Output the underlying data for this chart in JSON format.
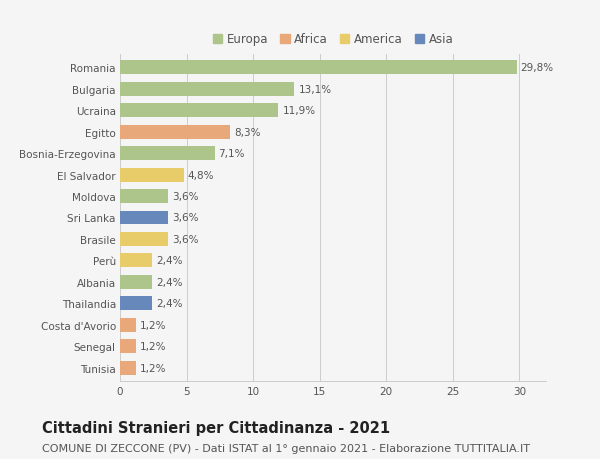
{
  "categories": [
    "Romania",
    "Bulgaria",
    "Ucraina",
    "Egitto",
    "Bosnia-Erzegovina",
    "El Salvador",
    "Moldova",
    "Sri Lanka",
    "Brasile",
    "Perù",
    "Albania",
    "Thailandia",
    "Costa d'Avorio",
    "Senegal",
    "Tunisia"
  ],
  "values": [
    29.8,
    13.1,
    11.9,
    8.3,
    7.1,
    4.8,
    3.6,
    3.6,
    3.6,
    2.4,
    2.4,
    2.4,
    1.2,
    1.2,
    1.2
  ],
  "labels": [
    "29,8%",
    "13,1%",
    "11,9%",
    "8,3%",
    "7,1%",
    "4,8%",
    "3,6%",
    "3,6%",
    "3,6%",
    "2,4%",
    "2,4%",
    "2,4%",
    "1,2%",
    "1,2%",
    "1,2%"
  ],
  "continents": [
    "Europa",
    "Europa",
    "Europa",
    "Africa",
    "Europa",
    "America",
    "Europa",
    "Asia",
    "America",
    "America",
    "Europa",
    "Asia",
    "Africa",
    "Africa",
    "Africa"
  ],
  "continent_colors": {
    "Europa": "#adc48a",
    "Africa": "#e8a87a",
    "America": "#e8cc6a",
    "Asia": "#6688bb"
  },
  "legend_order": [
    "Europa",
    "Africa",
    "America",
    "Asia"
  ],
  "title": "Cittadini Stranieri per Cittadinanza - 2021",
  "subtitle": "COMUNE DI ZECCONE (PV) - Dati ISTAT al 1° gennaio 2021 - Elaborazione TUTTITALIA.IT",
  "xlim": [
    0,
    32
  ],
  "xticks": [
    0,
    5,
    10,
    15,
    20,
    25,
    30
  ],
  "bg_color": "#f5f5f5",
  "plot_bg_color": "#f5f5f5",
  "title_fontsize": 10.5,
  "subtitle_fontsize": 8,
  "label_fontsize": 7.5,
  "tick_fontsize": 7.5,
  "legend_fontsize": 8.5
}
